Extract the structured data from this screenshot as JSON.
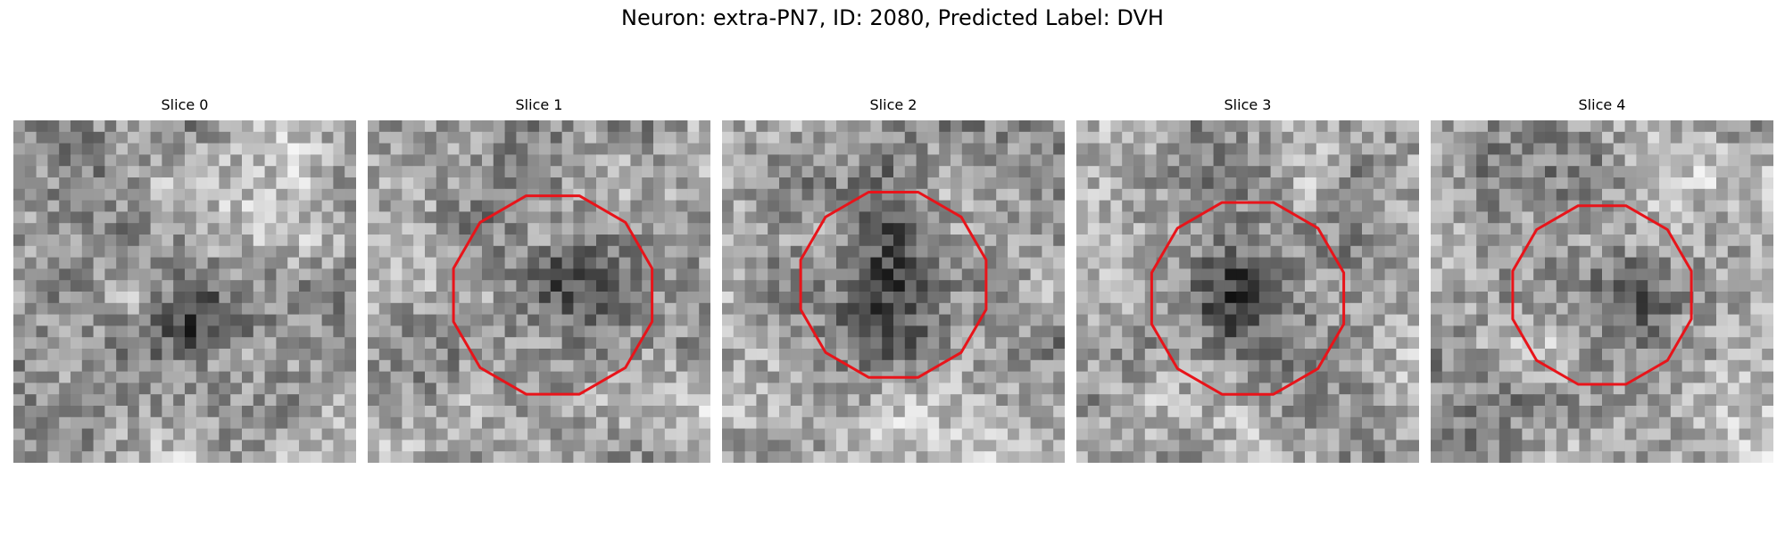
{
  "figure": {
    "title": "Neuron: extra-PN7, ID: 2080, Predicted Label: DVH",
    "contour_color": "#e8141a"
  },
  "slices": [
    {
      "label": "Slice 0",
      "has_contour": false,
      "dark_blob": [
        0.57,
        0.6,
        0.14,
        0.09
      ]
    },
    {
      "label": "Slice 1",
      "has_contour": true,
      "center": [
        0.54,
        0.51
      ],
      "radius": 0.3,
      "dark_blob": [
        0.55,
        0.48,
        0.14,
        0.14
      ]
    },
    {
      "label": "Slice 2",
      "has_contour": true,
      "center": [
        0.5,
        0.48
      ],
      "radius": 0.28,
      "dark_blob": [
        0.5,
        0.48,
        0.22,
        0.22
      ]
    },
    {
      "label": "Slice 3",
      "has_contour": true,
      "center": [
        0.5,
        0.52
      ],
      "radius": 0.29,
      "dark_blob": [
        0.46,
        0.52,
        0.14,
        0.18
      ]
    },
    {
      "label": "Slice 4",
      "has_contour": true,
      "center": [
        0.5,
        0.51
      ],
      "radius": 0.27,
      "dark_blob": [
        0.54,
        0.55,
        0.13,
        0.2
      ]
    }
  ]
}
